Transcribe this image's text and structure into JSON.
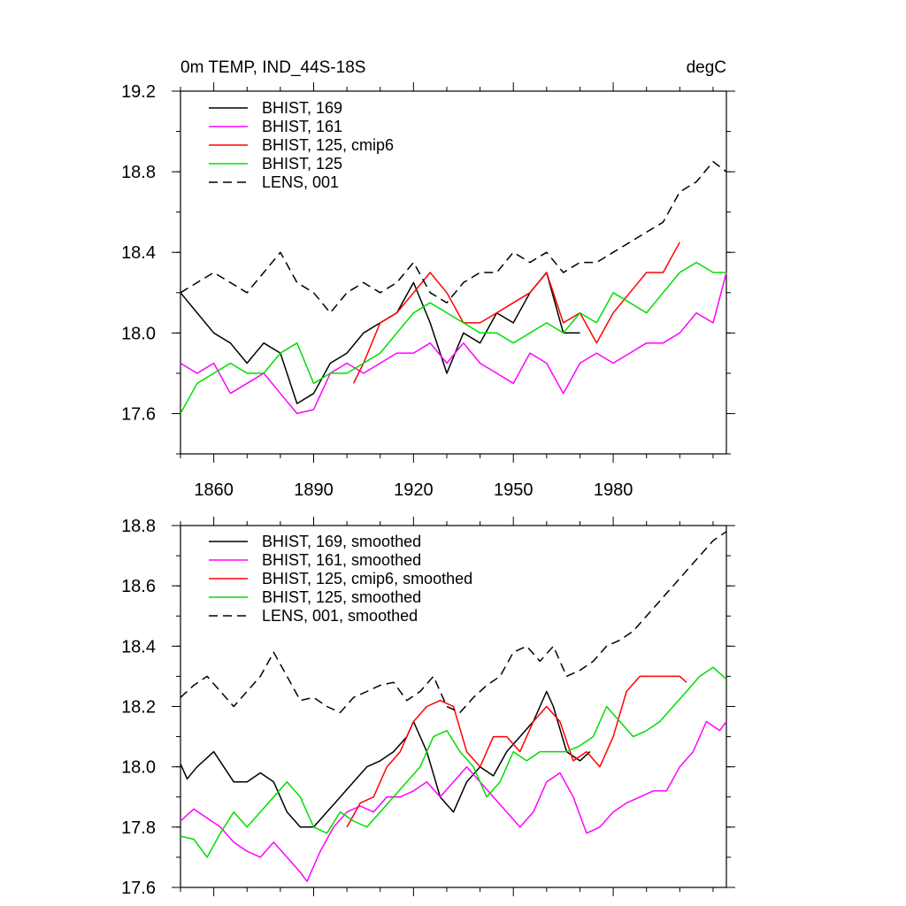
{
  "chart_data": [
    {
      "type": "line",
      "title": "0m TEMP, IND_44S-18S",
      "units": "degC",
      "xlim": [
        1850,
        2014
      ],
      "ylim": [
        17.4,
        19.2
      ],
      "yticks": [
        {
          "value": 17.6,
          "label": "17.6"
        },
        {
          "value": 18.0,
          "label": "18.0"
        },
        {
          "value": 18.4,
          "label": "18.4"
        },
        {
          "value": 18.8,
          "label": "18.8"
        },
        {
          "value": 19.2,
          "label": "19.2"
        }
      ],
      "xticks": [
        {
          "value": 1860,
          "label": "1860"
        },
        {
          "value": 1890,
          "label": "1890"
        },
        {
          "value": 1920,
          "label": "1920"
        },
        {
          "value": 1950,
          "label": "1950"
        },
        {
          "value": 1980,
          "label": "1980"
        }
      ],
      "legend_position": "top-left",
      "series": [
        {
          "name": "BHIST, 169",
          "color": "#000000",
          "dash": "solid",
          "x": [
            1850,
            1855,
            1860,
            1865,
            1870,
            1875,
            1880,
            1885,
            1890,
            1895,
            1900,
            1905,
            1910,
            1915,
            1920,
            1925,
            1930,
            1935,
            1940,
            1945,
            1950,
            1955,
            1960,
            1965,
            1970
          ],
          "y": [
            18.2,
            18.1,
            18.0,
            17.95,
            17.85,
            17.95,
            17.9,
            17.65,
            17.7,
            17.85,
            17.9,
            18.0,
            18.05,
            18.1,
            18.25,
            18.05,
            17.8,
            18.0,
            17.95,
            18.1,
            18.05,
            18.2,
            18.3,
            18.0,
            18.0
          ]
        },
        {
          "name": "BHIST, 161",
          "color": "#ff00ff",
          "dash": "solid",
          "x": [
            1850,
            1855,
            1860,
            1865,
            1870,
            1875,
            1880,
            1885,
            1890,
            1895,
            1900,
            1905,
            1910,
            1915,
            1920,
            1925,
            1930,
            1935,
            1940,
            1945,
            1950,
            1955,
            1960,
            1965,
            1970,
            1975,
            1980,
            1985,
            1990,
            1995,
            2000,
            2005,
            2010,
            2014
          ],
          "y": [
            17.85,
            17.8,
            17.85,
            17.7,
            17.75,
            17.8,
            17.7,
            17.6,
            17.62,
            17.8,
            17.85,
            17.8,
            17.85,
            17.9,
            17.9,
            17.95,
            17.85,
            17.95,
            17.85,
            17.8,
            17.75,
            17.9,
            17.85,
            17.7,
            17.85,
            17.9,
            17.85,
            17.9,
            17.95,
            17.95,
            18.0,
            18.1,
            18.05,
            18.3
          ]
        },
        {
          "name": "BHIST, 125, cmip6",
          "color": "#ff0000",
          "dash": "solid",
          "x": [
            1902,
            1905,
            1910,
            1915,
            1920,
            1925,
            1930,
            1935,
            1940,
            1945,
            1950,
            1955,
            1960,
            1965,
            1970,
            1975,
            1980,
            1985,
            1990,
            1995,
            2000
          ],
          "y": [
            17.75,
            17.85,
            18.05,
            18.1,
            18.2,
            18.3,
            18.2,
            18.05,
            18.05,
            18.1,
            18.15,
            18.2,
            18.3,
            18.05,
            18.1,
            17.95,
            18.1,
            18.2,
            18.3,
            18.3,
            18.45
          ]
        },
        {
          "name": "BHIST, 125",
          "color": "#00dd00",
          "dash": "solid",
          "x": [
            1850,
            1855,
            1860,
            1865,
            1870,
            1875,
            1880,
            1885,
            1890,
            1895,
            1900,
            1905,
            1910,
            1915,
            1920,
            1925,
            1930,
            1935,
            1940,
            1945,
            1950,
            1955,
            1960,
            1965,
            1970,
            1975,
            1980,
            1985,
            1990,
            1995,
            2000,
            2005,
            2010,
            2014
          ],
          "y": [
            17.6,
            17.75,
            17.8,
            17.85,
            17.8,
            17.8,
            17.9,
            17.95,
            17.75,
            17.8,
            17.8,
            17.85,
            17.9,
            18.0,
            18.1,
            18.15,
            18.1,
            18.05,
            18.0,
            18.0,
            17.95,
            18.0,
            18.05,
            18.0,
            18.1,
            18.05,
            18.2,
            18.15,
            18.1,
            18.2,
            18.3,
            18.35,
            18.3,
            18.3
          ]
        },
        {
          "name": "LENS, 001",
          "color": "#000000",
          "dash": "dashed",
          "x": [
            1850,
            1855,
            1860,
            1865,
            1870,
            1875,
            1880,
            1885,
            1890,
            1895,
            1900,
            1905,
            1910,
            1915,
            1920,
            1925,
            1930,
            1935,
            1940,
            1945,
            1950,
            1955,
            1960,
            1965,
            1970,
            1975,
            1980,
            1985,
            1990,
            1995,
            2000,
            2005,
            2010,
            2014
          ],
          "y": [
            18.2,
            18.25,
            18.3,
            18.25,
            18.2,
            18.3,
            18.4,
            18.25,
            18.2,
            18.1,
            18.2,
            18.25,
            18.2,
            18.25,
            18.35,
            18.2,
            18.15,
            18.25,
            18.3,
            18.3,
            18.4,
            18.35,
            18.4,
            18.3,
            18.35,
            18.35,
            18.4,
            18.45,
            18.5,
            18.55,
            18.7,
            18.75,
            18.85,
            18.8
          ]
        }
      ]
    },
    {
      "type": "line",
      "title": "",
      "xlim": [
        1850,
        2014
      ],
      "ylim": [
        17.6,
        18.8
      ],
      "yticks": [
        {
          "value": 17.6,
          "label": "17.6"
        },
        {
          "value": 17.8,
          "label": "17.8"
        },
        {
          "value": 18.0,
          "label": "18.0"
        },
        {
          "value": 18.2,
          "label": "18.2"
        },
        {
          "value": 18.4,
          "label": "18.4"
        },
        {
          "value": 18.6,
          "label": "18.6"
        },
        {
          "value": 18.8,
          "label": "18.8"
        }
      ],
      "xticks": [
        {
          "value": 1860,
          "label": ""
        },
        {
          "value": 1890,
          "label": ""
        },
        {
          "value": 1920,
          "label": ""
        },
        {
          "value": 1950,
          "label": ""
        },
        {
          "value": 1980,
          "label": ""
        }
      ],
      "legend_position": "top-left",
      "series": [
        {
          "name": "BHIST, 169, smoothed",
          "color": "#000000",
          "dash": "solid",
          "x": [
            1850,
            1852,
            1855,
            1858,
            1860,
            1863,
            1866,
            1870,
            1874,
            1878,
            1882,
            1886,
            1890,
            1894,
            1898,
            1902,
            1906,
            1910,
            1914,
            1918,
            1920,
            1924,
            1928,
            1932,
            1936,
            1940,
            1944,
            1948,
            1952,
            1956,
            1960,
            1962,
            1966,
            1970,
            1973
          ],
          "y": [
            18.01,
            17.96,
            18.0,
            18.03,
            18.05,
            18.0,
            17.95,
            17.95,
            17.98,
            17.95,
            17.85,
            17.8,
            17.8,
            17.85,
            17.9,
            17.95,
            18.0,
            18.02,
            18.05,
            18.1,
            18.15,
            18.05,
            17.9,
            17.85,
            17.95,
            18.0,
            17.97,
            18.05,
            18.1,
            18.15,
            18.25,
            18.2,
            18.05,
            18.02,
            18.05
          ]
        },
        {
          "name": "BHIST, 161, smoothed",
          "color": "#ff00ff",
          "dash": "solid",
          "x": [
            1850,
            1854,
            1858,
            1862,
            1866,
            1870,
            1874,
            1878,
            1882,
            1886,
            1888,
            1892,
            1896,
            1900,
            1904,
            1908,
            1912,
            1916,
            1920,
            1924,
            1928,
            1932,
            1936,
            1940,
            1944,
            1948,
            1952,
            1956,
            1960,
            1964,
            1968,
            1972,
            1976,
            1980,
            1984,
            1988,
            1992,
            1996,
            2000,
            2004,
            2008,
            2012,
            2014
          ],
          "y": [
            17.82,
            17.86,
            17.83,
            17.8,
            17.75,
            17.72,
            17.7,
            17.75,
            17.7,
            17.65,
            17.62,
            17.72,
            17.8,
            17.85,
            17.87,
            17.85,
            17.9,
            17.9,
            17.92,
            17.95,
            17.9,
            17.95,
            18.0,
            17.95,
            17.9,
            17.85,
            17.8,
            17.85,
            17.95,
            17.98,
            17.9,
            17.78,
            17.8,
            17.85,
            17.88,
            17.9,
            17.92,
            17.92,
            18.0,
            18.05,
            18.15,
            18.12,
            18.15
          ]
        },
        {
          "name": "BHIST, 125, cmip6, smoothed",
          "color": "#ff0000",
          "dash": "solid",
          "x": [
            1900,
            1904,
            1908,
            1912,
            1916,
            1920,
            1924,
            1928,
            1932,
            1936,
            1940,
            1944,
            1948,
            1952,
            1956,
            1960,
            1964,
            1968,
            1972,
            1976,
            1980,
            1984,
            1988,
            1992,
            1996,
            2000,
            2002
          ],
          "y": [
            17.8,
            17.88,
            17.9,
            18.0,
            18.05,
            18.15,
            18.2,
            18.22,
            18.2,
            18.05,
            18.0,
            18.1,
            18.1,
            18.05,
            18.15,
            18.2,
            18.15,
            18.02,
            18.05,
            18.0,
            18.1,
            18.25,
            18.3,
            18.3,
            18.3,
            18.3,
            18.28
          ]
        },
        {
          "name": "BHIST, 125, smoothed",
          "color": "#00dd00",
          "dash": "solid",
          "x": [
            1850,
            1854,
            1858,
            1862,
            1866,
            1870,
            1874,
            1878,
            1882,
            1886,
            1890,
            1894,
            1898,
            1902,
            1906,
            1910,
            1914,
            1918,
            1922,
            1926,
            1930,
            1934,
            1938,
            1942,
            1946,
            1950,
            1954,
            1958,
            1962,
            1966,
            1970,
            1974,
            1978,
            1982,
            1986,
            1990,
            1994,
            1998,
            2002,
            2006,
            2010,
            2014
          ],
          "y": [
            17.77,
            17.76,
            17.7,
            17.78,
            17.85,
            17.8,
            17.85,
            17.9,
            17.95,
            17.9,
            17.8,
            17.78,
            17.85,
            17.82,
            17.8,
            17.85,
            17.9,
            17.95,
            18.0,
            18.1,
            18.12,
            18.05,
            18.0,
            17.9,
            17.95,
            18.05,
            18.02,
            18.05,
            18.05,
            18.05,
            18.07,
            18.1,
            18.2,
            18.15,
            18.1,
            18.12,
            18.15,
            18.2,
            18.25,
            18.3,
            18.33,
            18.29
          ]
        },
        {
          "name": "LENS, 001, smoothed",
          "color": "#000000",
          "dash": "dashed",
          "x": [
            1850,
            1854,
            1858,
            1862,
            1866,
            1870,
            1874,
            1878,
            1882,
            1886,
            1890,
            1894,
            1898,
            1902,
            1906,
            1910,
            1914,
            1918,
            1922,
            1926,
            1930,
            1934,
            1938,
            1942,
            1946,
            1950,
            1954,
            1958,
            1962,
            1966,
            1970,
            1974,
            1978,
            1982,
            1986,
            1990,
            1994,
            1998,
            2002,
            2006,
            2010,
            2014
          ],
          "y": [
            18.23,
            18.27,
            18.3,
            18.25,
            18.2,
            18.25,
            18.3,
            18.38,
            18.3,
            18.22,
            18.23,
            18.2,
            18.18,
            18.23,
            18.25,
            18.27,
            18.28,
            18.22,
            18.25,
            18.3,
            18.2,
            18.18,
            18.23,
            18.27,
            18.3,
            18.38,
            18.4,
            18.35,
            18.4,
            18.3,
            18.32,
            18.35,
            18.4,
            18.42,
            18.45,
            18.5,
            18.55,
            18.6,
            18.65,
            18.7,
            18.75,
            18.78
          ]
        }
      ]
    }
  ]
}
